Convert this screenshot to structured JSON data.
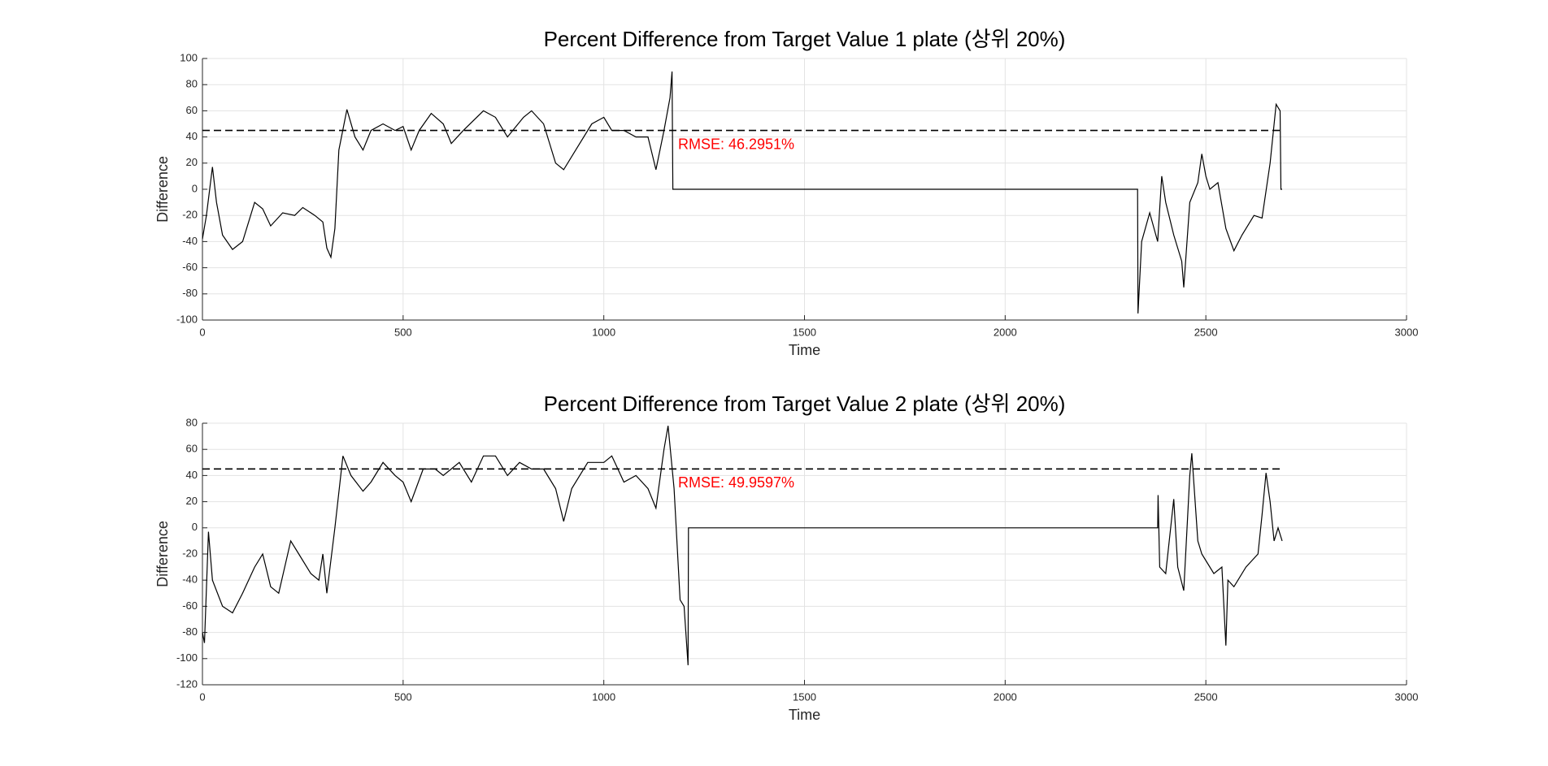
{
  "chart_data": [
    {
      "type": "line",
      "title": "Percent Difference from Target Value 1 plate (상위 20%)",
      "xlabel": "Time",
      "ylabel": "Difference",
      "xlim": [
        0,
        3000
      ],
      "xticks": [
        0,
        500,
        1000,
        1500,
        2000,
        2500,
        3000
      ],
      "ylim": [
        -100,
        100
      ],
      "yticks": [
        -100,
        -80,
        -60,
        -40,
        -20,
        0,
        20,
        40,
        60,
        80,
        100
      ],
      "grid": true,
      "color": "#000000",
      "reference": {
        "value": 45,
        "x_end": 2690
      },
      "annotation": "RMSE: 46.2951%",
      "annotation_color": "#ff0000",
      "x": [
        0,
        10,
        25,
        35,
        50,
        75,
        100,
        130,
        150,
        170,
        200,
        230,
        250,
        280,
        300,
        310,
        320,
        330,
        340,
        360,
        380,
        400,
        420,
        450,
        480,
        500,
        520,
        540,
        570,
        600,
        620,
        650,
        700,
        730,
        760,
        800,
        820,
        850,
        880,
        900,
        930,
        970,
        1000,
        1020,
        1050,
        1080,
        1110,
        1130,
        1150,
        1165,
        1170,
        1172,
        2330,
        2331,
        2340,
        2360,
        2380,
        2390,
        2400,
        2420,
        2440,
        2445,
        2460,
        2480,
        2490,
        2500,
        2510,
        2530,
        2550,
        2570,
        2590,
        2620,
        2640,
        2660,
        2675,
        2685,
        2687,
        2690
      ],
      "values": [
        -38,
        -20,
        17,
        -10,
        -35,
        -46,
        -40,
        -10,
        -15,
        -28,
        -18,
        -20,
        -14,
        -20,
        -25,
        -45,
        -52,
        -30,
        30,
        61,
        40,
        30,
        45,
        50,
        45,
        48,
        30,
        45,
        58,
        50,
        35,
        45,
        60,
        55,
        40,
        55,
        60,
        50,
        20,
        15,
        30,
        50,
        55,
        45,
        45,
        40,
        40,
        15,
        45,
        70,
        90,
        0,
        0,
        -95,
        -40,
        -18,
        -40,
        10,
        -10,
        -35,
        -55,
        -75,
        -10,
        5,
        27,
        10,
        0,
        5,
        -30,
        -47,
        -35,
        -20,
        -22,
        20,
        65,
        60,
        0,
        0
      ]
    },
    {
      "type": "line",
      "title": "Percent Difference from Target Value 2 plate (상위 20%)",
      "xlabel": "Time",
      "ylabel": "Difference",
      "xlim": [
        0,
        3000
      ],
      "xticks": [
        0,
        500,
        1000,
        1500,
        2000,
        2500,
        3000
      ],
      "ylim": [
        -120,
        80
      ],
      "yticks": [
        -120,
        -100,
        -80,
        -60,
        -40,
        -20,
        0,
        20,
        40,
        60,
        80
      ],
      "grid": true,
      "color": "#000000",
      "reference": {
        "value": 45,
        "x_end": 2690
      },
      "annotation": "RMSE: 49.9597%",
      "annotation_color": "#ff0000",
      "x": [
        0,
        5,
        15,
        25,
        50,
        75,
        100,
        130,
        150,
        170,
        190,
        220,
        240,
        270,
        290,
        300,
        310,
        330,
        350,
        370,
        400,
        420,
        450,
        480,
        500,
        520,
        550,
        580,
        600,
        640,
        670,
        700,
        730,
        760,
        790,
        820,
        850,
        880,
        900,
        920,
        960,
        1000,
        1020,
        1050,
        1080,
        1110,
        1130,
        1150,
        1160,
        1175,
        1190,
        1200,
        1210,
        1211,
        2380,
        2381,
        2385,
        2400,
        2420,
        2430,
        2445,
        2460,
        2465,
        2480,
        2490,
        2520,
        2540,
        2550,
        2555,
        2570,
        2600,
        2630,
        2640,
        2650,
        2660,
        2670,
        2680,
        2690
      ],
      "values": [
        -80,
        -88,
        -3,
        -40,
        -60,
        -65,
        -50,
        -30,
        -20,
        -45,
        -50,
        -10,
        -20,
        -35,
        -40,
        -20,
        -50,
        0,
        55,
        40,
        28,
        35,
        50,
        40,
        35,
        20,
        45,
        45,
        40,
        50,
        35,
        55,
        55,
        40,
        50,
        45,
        45,
        30,
        5,
        30,
        50,
        50,
        55,
        35,
        40,
        30,
        15,
        60,
        78,
        30,
        -55,
        -60,
        -105,
        0,
        0,
        25,
        -30,
        -35,
        22,
        -30,
        -48,
        40,
        57,
        -10,
        -20,
        -35,
        -30,
        -90,
        -40,
        -45,
        -30,
        -20,
        10,
        42,
        20,
        -10,
        0,
        -10
      ]
    }
  ]
}
